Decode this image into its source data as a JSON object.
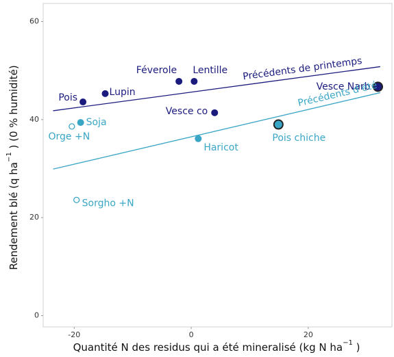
{
  "chart_data": {
    "type": "scatter",
    "x_label": {
      "text": "Quantité N des residus qui a été mineralisé (kg N  ha",
      "sup": "−1",
      "after": " )"
    },
    "y_label": {
      "text": "Rendement blé (q ha",
      "sup": "−1",
      "after": " ) (0 % humidité)"
    },
    "xlim": [
      -25.3,
      34.3
    ],
    "ylim": [
      -2.3,
      63.7
    ],
    "xticks": [
      -20,
      0,
      20
    ],
    "yticks": [
      0,
      20,
      40,
      60
    ],
    "series": [
      {
        "name": "Précédents de printemps",
        "color": "#1b1b7e",
        "labels": [
          "Pois",
          "Lupin",
          "Féverole",
          "Lentille",
          "Vesce co",
          "Vesce Narb"
        ],
        "x": [
          -18.5,
          -14.7,
          -2.1,
          0.5,
          4.0,
          31.9
        ],
        "values": [
          43.6,
          45.3,
          47.8,
          47.8,
          41.4,
          46.7
        ],
        "markers": [
          "filled",
          "filled",
          "filled",
          "filled",
          "filled",
          "outlined"
        ],
        "fit_x": [
          -23.6,
          32.3
        ],
        "fit_y": [
          41.8,
          50.8
        ]
      },
      {
        "name": "Précédents d’été",
        "color": "#3aa6c6",
        "labels": [
          "Orge +N",
          "Soja",
          "Sorgho +N",
          "Haricot",
          "Pois chiche"
        ],
        "x": [
          -20.4,
          -18.9,
          -19.6,
          1.2,
          14.9
        ],
        "values": [
          38.6,
          39.4,
          23.6,
          36.1,
          39.0
        ],
        "markers": [
          "open",
          "filled",
          "open",
          "filled",
          "outlined"
        ],
        "fit_x": [
          -23.6,
          32.3
        ],
        "fit_y": [
          29.9,
          45.5
        ]
      }
    ]
  }
}
